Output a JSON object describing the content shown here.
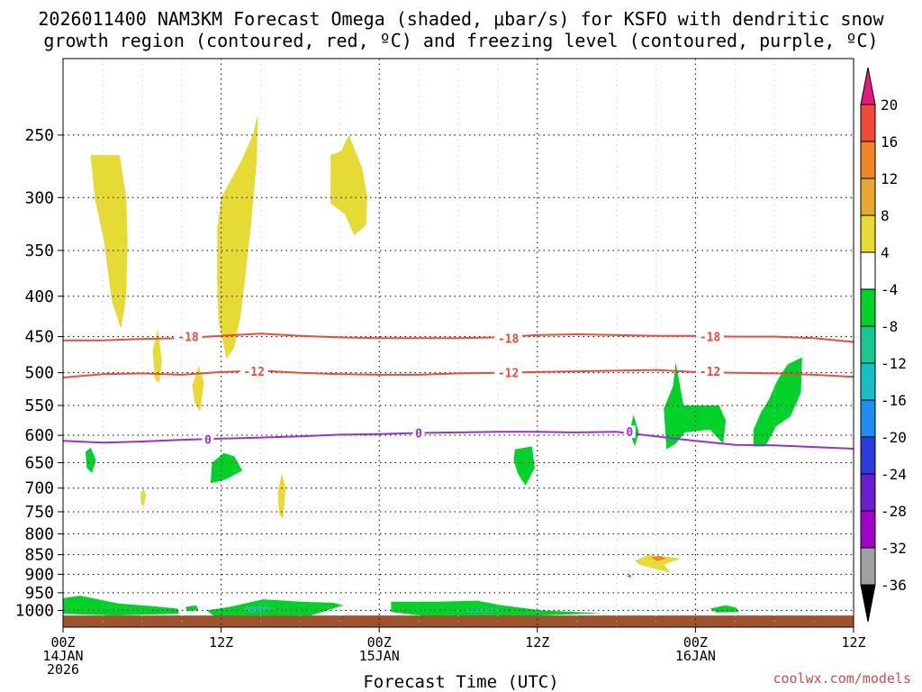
{
  "title": {
    "line1": "2026011400 NAM3KM Forecast Omega (shaded, μbar/s) for KSFO with dendritic snow",
    "line2": "growth region (contoured, red, ºC) and freezing level (contoured, purple, ºC)"
  },
  "xlabel": "Forecast Time (UTC)",
  "credit": "coolwx.com/models",
  "chart_data": {
    "type": "heatmap",
    "title": "2026011400 NAM3KM Forecast Omega (shaded, μbar/s) for KSFO with dendritic snow growth region (contoured, red, ºC) and freezing level (contoured, purple, ºC)",
    "xlabel": "Forecast Time (UTC)",
    "ylabel": "",
    "x_unit": "forecast hour",
    "y_unit": "hPa",
    "xlim": [
      0,
      60
    ],
    "ylim": [
      1050,
      200
    ],
    "y_scale": "log-pressure",
    "grid": true,
    "x_ticks": [
      {
        "x": 0,
        "lines": [
          "00Z",
          "14JAN",
          "2026"
        ]
      },
      {
        "x": 12,
        "lines": [
          "12Z"
        ]
      },
      {
        "x": 24,
        "lines": [
          "00Z",
          "15JAN"
        ]
      },
      {
        "x": 36,
        "lines": [
          "12Z"
        ]
      },
      {
        "x": 48,
        "lines": [
          "00Z",
          "16JAN"
        ]
      },
      {
        "x": 60,
        "lines": [
          "12Z"
        ]
      }
    ],
    "y_ticks": [
      250,
      300,
      350,
      400,
      450,
      500,
      550,
      600,
      650,
      700,
      750,
      800,
      850,
      900,
      950,
      1000
    ],
    "minor_x_grid": [
      3,
      6,
      9,
      15,
      18,
      21,
      27,
      30,
      33,
      39,
      42,
      45,
      51,
      54,
      57
    ],
    "colorbar": {
      "labels": [
        "20",
        "16",
        "12",
        "8",
        "4",
        "-4",
        "-8",
        "-12",
        "-16",
        "-20",
        "-24",
        "-28",
        "-32",
        "-36"
      ],
      "bands": [
        {
          "from": 20,
          "to": 24,
          "color": "#e6197d"
        },
        {
          "from": 16,
          "to": 20,
          "color": "#f04a3a"
        },
        {
          "from": 12,
          "to": 16,
          "color": "#f08426"
        },
        {
          "from": 8,
          "to": 12,
          "color": "#e8a830"
        },
        {
          "from": 4,
          "to": 8,
          "color": "#e6da35"
        },
        {
          "from": -4,
          "to": 4,
          "color": "#ffffff"
        },
        {
          "from": -8,
          "to": -4,
          "color": "#00d22a"
        },
        {
          "from": -12,
          "to": -8,
          "color": "#19c88e"
        },
        {
          "from": -16,
          "to": -12,
          "color": "#14bfc8"
        },
        {
          "from": -20,
          "to": -16,
          "color": "#1e8cf0"
        },
        {
          "from": -24,
          "to": -20,
          "color": "#2a3cdc"
        },
        {
          "from": -28,
          "to": -24,
          "color": "#6a1ed2"
        },
        {
          "from": -32,
          "to": -28,
          "color": "#a000c8"
        },
        {
          "from": -36,
          "to": -32,
          "color": "#a0a0a0"
        },
        {
          "from": -40,
          "to": -36,
          "color": "#000000"
        }
      ]
    },
    "shaded_regions": [
      {
        "color": "#e6da35",
        "points": [
          [
            2.1,
            265
          ],
          [
            4.3,
            265
          ],
          [
            4.8,
            300
          ],
          [
            4.9,
            340
          ],
          [
            4.8,
            400
          ],
          [
            4.4,
            440
          ],
          [
            3.7,
            405
          ],
          [
            3.1,
            340
          ],
          [
            2.4,
            300
          ]
        ]
      },
      {
        "color": "#e6da35",
        "points": [
          [
            12.5,
            290
          ],
          [
            13.5,
            270
          ],
          [
            14.4,
            250
          ],
          [
            14.8,
            235
          ],
          [
            14.7,
            270
          ],
          [
            14.3,
            320
          ],
          [
            13.9,
            370
          ],
          [
            13.5,
            420
          ],
          [
            13.0,
            465
          ],
          [
            12.4,
            480
          ],
          [
            11.8,
            430
          ],
          [
            11.7,
            380
          ],
          [
            11.7,
            330
          ],
          [
            12.0,
            300
          ]
        ]
      },
      {
        "color": "#e6da35",
        "points": [
          [
            20.3,
            265
          ],
          [
            21.1,
            262
          ],
          [
            21.7,
            250
          ],
          [
            22.7,
            275
          ],
          [
            23.1,
            300
          ],
          [
            23.0,
            325
          ],
          [
            22.1,
            335
          ],
          [
            21.4,
            315
          ],
          [
            20.3,
            305
          ]
        ]
      },
      {
        "color": "#e6da35",
        "points": [
          [
            6.8,
            470
          ],
          [
            7.2,
            440
          ],
          [
            7.5,
            485
          ],
          [
            7.3,
            515
          ],
          [
            7.0,
            510
          ]
        ]
      },
      {
        "color": "#e6da35",
        "points": [
          [
            9.8,
            520
          ],
          [
            10.3,
            490
          ],
          [
            10.7,
            515
          ],
          [
            10.4,
            560
          ],
          [
            10.0,
            545
          ]
        ]
      },
      {
        "color": "#e6da35",
        "points": [
          [
            16.3,
            710
          ],
          [
            16.6,
            670
          ],
          [
            16.9,
            700
          ],
          [
            16.7,
            765
          ],
          [
            16.4,
            755
          ]
        ]
      },
      {
        "color": "#e6da35",
        "points": [
          [
            5.9,
            710
          ],
          [
            6.1,
            700
          ],
          [
            6.3,
            715
          ],
          [
            6.1,
            740
          ],
          [
            5.9,
            730
          ]
        ]
      },
      {
        "color": "#e6da35",
        "points": [
          [
            43.4,
            865
          ],
          [
            44.5,
            850
          ],
          [
            45.8,
            855
          ],
          [
            46.9,
            860
          ],
          [
            45.6,
            875
          ],
          [
            46.1,
            895
          ],
          [
            44.8,
            885
          ],
          [
            43.7,
            875
          ]
        ]
      },
      {
        "color": "#f08426",
        "points": [
          [
            44.6,
            857
          ],
          [
            45.3,
            853
          ],
          [
            45.8,
            860
          ],
          [
            45.1,
            866
          ]
        ]
      },
      {
        "color": "#00d22a",
        "points": [
          [
            1.7,
            630
          ],
          [
            2.1,
            622
          ],
          [
            2.5,
            645
          ],
          [
            2.2,
            670
          ],
          [
            1.8,
            660
          ]
        ]
      },
      {
        "color": "#00d22a",
        "points": [
          [
            11.3,
            650
          ],
          [
            12.2,
            632
          ],
          [
            13.0,
            638
          ],
          [
            13.6,
            665
          ],
          [
            12.3,
            683
          ],
          [
            11.2,
            690
          ]
        ]
      },
      {
        "color": "#00d22a",
        "points": [
          [
            34.3,
            625
          ],
          [
            35.6,
            620
          ],
          [
            35.8,
            660
          ],
          [
            35.1,
            695
          ],
          [
            34.5,
            670
          ],
          [
            34.2,
            645
          ]
        ]
      },
      {
        "color": "#00d22a",
        "points": [
          [
            43.0,
            595
          ],
          [
            43.3,
            565
          ],
          [
            43.7,
            595
          ],
          [
            43.4,
            620
          ]
        ]
      },
      {
        "color": "#00d22a",
        "points": [
          [
            45.6,
            555
          ],
          [
            46.3,
            520
          ],
          [
            46.5,
            485
          ],
          [
            47.1,
            550
          ],
          [
            49.8,
            550
          ],
          [
            50.3,
            575
          ],
          [
            50.1,
            615
          ],
          [
            49.1,
            590
          ],
          [
            47.2,
            595
          ],
          [
            46.5,
            615
          ],
          [
            45.8,
            625
          ]
        ]
      },
      {
        "color": "#00d22a",
        "points": [
          [
            52.4,
            590
          ],
          [
            53.0,
            560
          ],
          [
            53.6,
            540
          ],
          [
            54.0,
            520
          ],
          [
            54.4,
            505
          ],
          [
            55.0,
            488
          ],
          [
            56.1,
            478
          ],
          [
            56.0,
            530
          ],
          [
            55.2,
            568
          ],
          [
            54.1,
            585
          ],
          [
            53.3,
            620
          ],
          [
            52.4,
            620
          ]
        ]
      },
      {
        "color": "#00d22a",
        "points": [
          [
            0,
            965
          ],
          [
            1.3,
            958
          ],
          [
            4.2,
            980
          ],
          [
            6.8,
            988
          ],
          [
            8.7,
            995
          ],
          [
            8.8,
            1010
          ],
          [
            4.0,
            1015
          ],
          [
            0,
            1010
          ]
        ]
      },
      {
        "color": "#00d22a",
        "points": [
          [
            9.3,
            990
          ],
          [
            10.1,
            985
          ],
          [
            10.3,
            1000
          ],
          [
            9.4,
            1002
          ]
        ]
      },
      {
        "color": "#00d22a",
        "points": [
          [
            10.9,
            1000
          ],
          [
            12.6,
            990
          ],
          [
            15.2,
            968
          ],
          [
            18.0,
            975
          ],
          [
            20.5,
            978
          ],
          [
            21.3,
            985
          ],
          [
            18.8,
            1015
          ],
          [
            15.0,
            1015
          ],
          [
            11.5,
            1018
          ]
        ]
      },
      {
        "color": "#00d22a",
        "points": [
          [
            24.9,
            975
          ],
          [
            28.5,
            975
          ],
          [
            31.4,
            972
          ],
          [
            33.3,
            985
          ],
          [
            36.3,
            1000
          ],
          [
            40.9,
            1008
          ],
          [
            34.0,
            1018
          ],
          [
            27.8,
            1018
          ],
          [
            24.9,
            1005
          ]
        ]
      },
      {
        "color": "#00d22a",
        "points": [
          [
            49.1,
            995
          ],
          [
            50.3,
            985
          ],
          [
            51.1,
            992
          ],
          [
            51.3,
            1005
          ],
          [
            49.6,
            1006
          ]
        ]
      },
      {
        "color": "#00d22a",
        "points": [
          [
            42.8,
            905
          ],
          [
            43.1,
            900
          ],
          [
            43.1,
            910
          ]
        ]
      },
      {
        "color": "#19c88e",
        "points": [
          [
            13.8,
            990
          ],
          [
            15.4,
            988
          ],
          [
            16.1,
            995
          ],
          [
            14.7,
            1005
          ],
          [
            13.8,
            1002
          ]
        ]
      },
      {
        "color": "#19c88e",
        "points": [
          [
            30.5,
            997
          ],
          [
            33.2,
            995
          ],
          [
            32.6,
            1005
          ],
          [
            30.6,
            1005
          ]
        ]
      }
    ],
    "terrain": {
      "color": "#a0522d",
      "top_hpa": 1015,
      "bottom_hpa": 1050
    },
    "contours": [
      {
        "name": "-18",
        "color": "#f04a3a",
        "x": [
          0,
          3,
          6,
          9,
          12,
          15,
          18,
          21,
          24,
          27,
          30,
          33,
          36,
          39,
          42,
          45,
          48,
          51,
          54,
          57,
          60
        ],
        "y": [
          455,
          455,
          453,
          452,
          449,
          446,
          449,
          451,
          452,
          452,
          452,
          451,
          448,
          447,
          448,
          449,
          449,
          450,
          450,
          452,
          457
        ]
      },
      {
        "name": "-12",
        "color": "#f04a3a",
        "x": [
          0,
          3,
          6,
          9,
          12,
          15,
          18,
          21,
          24,
          27,
          30,
          33,
          36,
          39,
          42,
          45,
          48,
          51,
          54,
          57,
          60
        ],
        "y": [
          507,
          502,
          501,
          503,
          499,
          497,
          500,
          502,
          503,
          503,
          501,
          500,
          499,
          498,
          497,
          496,
          499,
          500,
          501,
          503,
          506
        ]
      },
      {
        "name": "0",
        "color": "#9b2fd0",
        "x": [
          0,
          3,
          6,
          9,
          12,
          15,
          18,
          21,
          24,
          27,
          30,
          33,
          36,
          39,
          42,
          45,
          48,
          51,
          54,
          57,
          60
        ],
        "y": [
          610,
          613,
          611,
          608,
          606,
          604,
          602,
          599,
          598,
          596,
          595,
          594,
          594,
          595,
          594,
          602,
          610,
          617,
          618,
          621,
          624
        ]
      }
    ],
    "contour_labels": [
      {
        "text": "-18",
        "x": 9.5,
        "y": 450,
        "color": "#f04a3a"
      },
      {
        "text": "-18",
        "x": 33.8,
        "y": 452,
        "color": "#f04a3a"
      },
      {
        "text": "-18",
        "x": 49.1,
        "y": 450,
        "color": "#f04a3a"
      },
      {
        "text": "-12",
        "x": 14.5,
        "y": 498,
        "color": "#f04a3a"
      },
      {
        "text": "-12",
        "x": 33.8,
        "y": 500,
        "color": "#f04a3a"
      },
      {
        "text": "-12",
        "x": 49.1,
        "y": 498,
        "color": "#f04a3a"
      },
      {
        "text": "0",
        "x": 11.0,
        "y": 607,
        "color": "#9b2fd0"
      },
      {
        "text": "0",
        "x": 27.0,
        "y": 596,
        "color": "#9b2fd0"
      },
      {
        "text": "0",
        "x": 43.0,
        "y": 594,
        "color": "#9b2fd0"
      }
    ]
  }
}
